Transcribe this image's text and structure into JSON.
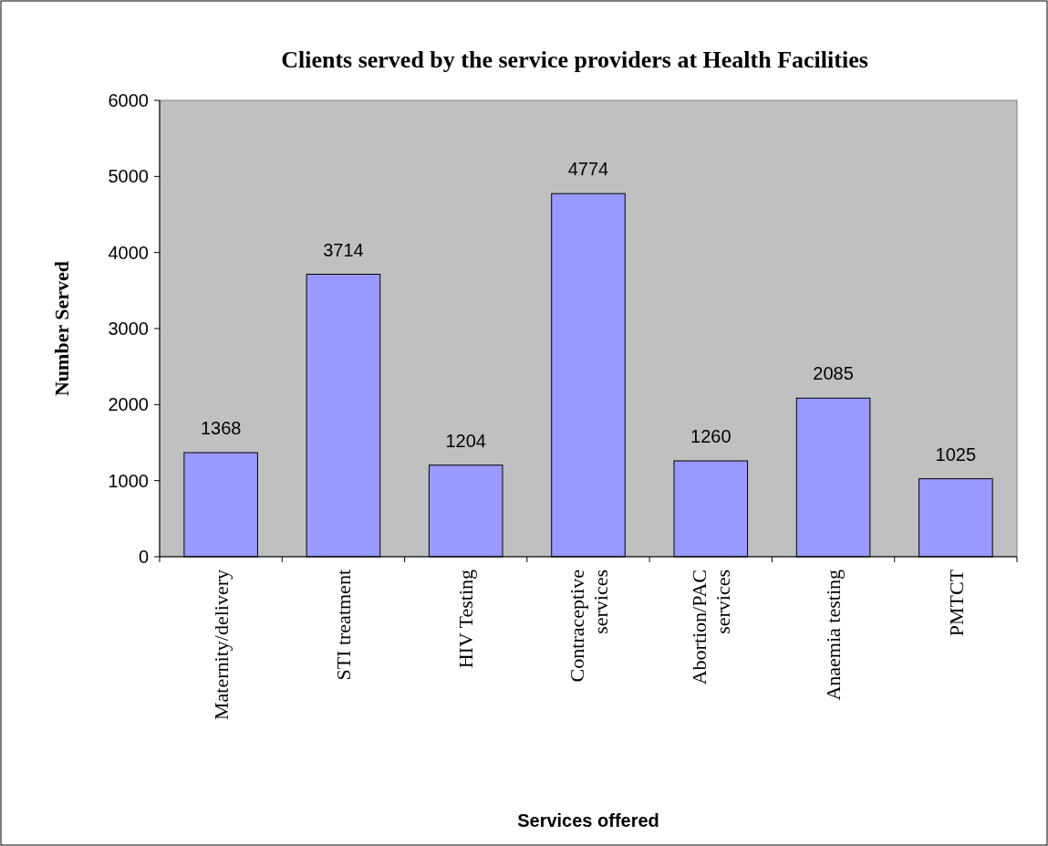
{
  "chart_data": {
    "type": "bar",
    "title": "Clients served by the service providers at Health Facilities",
    "xlabel": "Services offered",
    "ylabel": "Number Served",
    "categories": [
      "Maternity/delivery",
      "STI treatment",
      "HIV Testing",
      "Contraceptive services",
      "Abortion/PAC services",
      "Anaemia testing",
      "PMTCT"
    ],
    "values": [
      1368,
      3714,
      1204,
      4774,
      1260,
      2085,
      1025
    ],
    "color": "#9999ff",
    "ylim": [
      0,
      6000
    ],
    "yticks": [
      0,
      1000,
      2000,
      3000,
      4000,
      5000,
      6000
    ],
    "grid": false,
    "data_labels": true
  }
}
